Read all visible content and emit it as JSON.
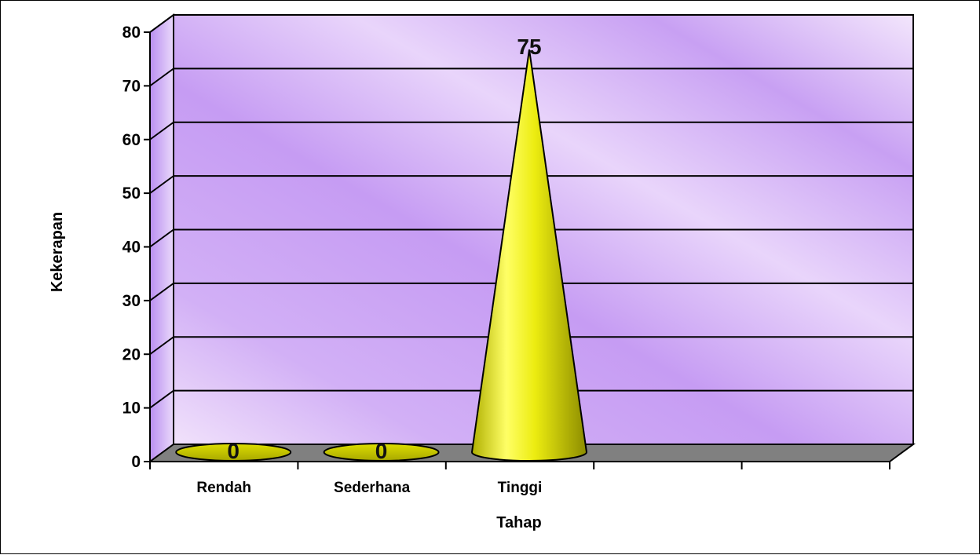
{
  "chart_data": {
    "type": "bar",
    "bar_shape": "cone-3d",
    "categories": [
      "Rendah",
      "Sederhana",
      "Tinggi",
      "",
      ""
    ],
    "values": [
      0,
      0,
      75,
      null,
      null
    ],
    "data_labels": [
      "0",
      "0",
      "75",
      "",
      ""
    ],
    "xlabel": "Tahap",
    "ylabel": "Kekerapan",
    "ylim": [
      0,
      80
    ],
    "yticks": [
      0,
      10,
      20,
      30,
      40,
      50,
      60,
      70,
      80
    ],
    "grid": true,
    "legend": "none",
    "colors": {
      "wall_light": "#f1e2fb",
      "wall_dark": "#c69cf3",
      "floor": "#808080",
      "cone_light": "#ffff66",
      "cone_mid": "#e8e800",
      "cone_dark": "#8c8c00"
    }
  }
}
